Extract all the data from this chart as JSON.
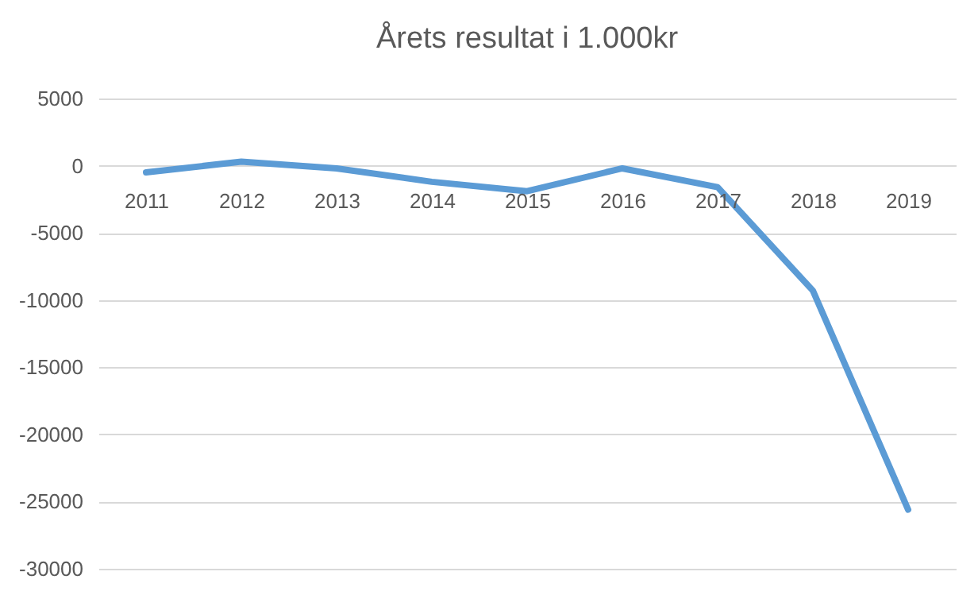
{
  "chart_data": {
    "type": "line",
    "title": "Årets resultat i 1.000kr",
    "categories": [
      "2011",
      "2012",
      "2013",
      "2014",
      "2015",
      "2016",
      "2017",
      "2018",
      "2019"
    ],
    "series": [
      {
        "color": "#5b9bd5",
        "values": [
          -500,
          300,
          -200,
          -1200,
          -1900,
          -200,
          -1600,
          -9300,
          -25600
        ]
      }
    ],
    "ylim": [
      -30000,
      5000
    ],
    "yticks": [
      -30000,
      -25000,
      -20000,
      -15000,
      -10000,
      -5000,
      0,
      5000
    ],
    "grid": "y",
    "marker": "none",
    "line_style": "solid"
  }
}
